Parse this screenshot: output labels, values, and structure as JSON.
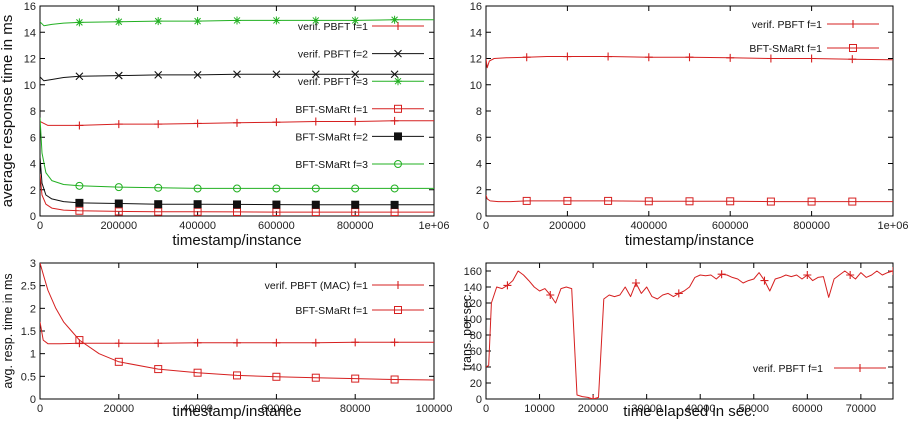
{
  "chart_data": [
    {
      "type": "line",
      "xlabel": "timestamp/instance",
      "ylabel": "average response time in ms",
      "xlim": [
        0,
        1000000
      ],
      "ylim": [
        0,
        16
      ],
      "xticks": [
        0,
        200000,
        400000,
        600000,
        800000,
        1000000
      ],
      "xtick_labels": [
        "0",
        "200000",
        "400000",
        "600000",
        "800000",
        "1e+06"
      ],
      "yticks": [
        0,
        2,
        4,
        6,
        8,
        10,
        12,
        14,
        16
      ],
      "ytick_labels": [
        "0",
        "2",
        "4",
        "6",
        "8",
        "10",
        "12",
        "14",
        "16"
      ],
      "grid": false,
      "legend": "right",
      "series": [
        {
          "name": "verif. PBFT f=1",
          "color": "#d62020",
          "marker": "plus",
          "x": [
            0,
            20000,
            60000,
            100000,
            200000,
            300000,
            400000,
            500000,
            600000,
            700000,
            800000,
            900000,
            1000000
          ],
          "y": [
            7.2,
            6.9,
            6.9,
            6.9,
            7.0,
            7.0,
            7.05,
            7.1,
            7.15,
            7.2,
            7.2,
            7.25,
            7.25
          ]
        },
        {
          "name": "verif. PBFT f=2",
          "color": "#111111",
          "marker": "x",
          "x": [
            0,
            10000,
            30000,
            60000,
            100000,
            200000,
            300000,
            400000,
            500000,
            600000,
            700000,
            800000,
            900000,
            1000000
          ],
          "y": [
            10.6,
            10.3,
            10.4,
            10.55,
            10.65,
            10.7,
            10.75,
            10.75,
            10.8,
            10.8,
            10.8,
            10.8,
            10.8,
            10.8
          ]
        },
        {
          "name": "verif. PBFT f=3",
          "color": "#22b022",
          "marker": "star",
          "x": [
            0,
            10000,
            30000,
            60000,
            100000,
            200000,
            300000,
            400000,
            500000,
            600000,
            700000,
            800000,
            900000,
            1000000
          ],
          "y": [
            14.8,
            14.5,
            14.6,
            14.7,
            14.75,
            14.8,
            14.85,
            14.85,
            14.9,
            14.9,
            14.9,
            14.9,
            14.95,
            14.95
          ]
        },
        {
          "name": "BFT-SMaRt f=1",
          "color": "#d62020",
          "marker": "square-open",
          "x": [
            0,
            5000,
            15000,
            30000,
            60000,
            100000,
            200000,
            300000,
            400000,
            500000,
            600000,
            700000,
            800000,
            900000,
            1000000
          ],
          "y": [
            3.2,
            1.6,
            0.9,
            0.6,
            0.45,
            0.4,
            0.35,
            0.33,
            0.32,
            0.31,
            0.3,
            0.3,
            0.3,
            0.3,
            0.3
          ]
        },
        {
          "name": "BFT-SMaRt f=2",
          "color": "#111111",
          "marker": "square-filled",
          "x": [
            0,
            5000,
            15000,
            30000,
            60000,
            100000,
            200000,
            300000,
            400000,
            500000,
            600000,
            700000,
            800000,
            900000,
            1000000
          ],
          "y": [
            4.5,
            2.5,
            1.6,
            1.3,
            1.1,
            1.0,
            0.95,
            0.9,
            0.9,
            0.88,
            0.87,
            0.86,
            0.86,
            0.85,
            0.85
          ]
        },
        {
          "name": "BFT-SMaRt f=3",
          "color": "#22b022",
          "marker": "circle-open",
          "x": [
            0,
            5000,
            15000,
            30000,
            60000,
            100000,
            200000,
            300000,
            400000,
            500000,
            600000,
            700000,
            800000,
            900000,
            1000000
          ],
          "y": [
            7.5,
            4.8,
            3.3,
            2.7,
            2.4,
            2.3,
            2.2,
            2.15,
            2.1,
            2.1,
            2.1,
            2.1,
            2.1,
            2.1,
            2.1
          ]
        }
      ]
    },
    {
      "type": "line",
      "xlabel": "timestamp/instance",
      "ylabel": "",
      "xlim": [
        0,
        1000000
      ],
      "ylim": [
        0,
        16
      ],
      "xticks": [
        0,
        200000,
        400000,
        600000,
        800000,
        1000000
      ],
      "xtick_labels": [
        "0",
        "200000",
        "400000",
        "600000",
        "800000",
        "1e+06"
      ],
      "yticks": [
        0,
        2,
        4,
        6,
        8,
        10,
        12,
        14,
        16
      ],
      "ytick_labels": [
        "0",
        "2",
        "4",
        "6",
        "8",
        "10",
        "12",
        "14",
        "16"
      ],
      "grid": false,
      "legend": "top-right",
      "series": [
        {
          "name": "verif. PBFT f=1",
          "color": "#d62020",
          "marker": "plus",
          "x": [
            0,
            3000,
            8000,
            20000,
            50000,
            100000,
            150000,
            200000,
            300000,
            400000,
            500000,
            600000,
            700000,
            800000,
            900000,
            1000000
          ],
          "y": [
            12.0,
            11.3,
            11.8,
            12.0,
            12.05,
            12.1,
            12.15,
            12.15,
            12.15,
            12.1,
            12.1,
            12.05,
            12.0,
            12.0,
            11.95,
            11.9
          ]
        },
        {
          "name": "BFT-SMaRt f=1",
          "color": "#d62020",
          "marker": "square-open",
          "x": [
            0,
            3000,
            10000,
            30000,
            60000,
            100000,
            200000,
            300000,
            400000,
            500000,
            600000,
            700000,
            800000,
            900000,
            1000000
          ],
          "y": [
            1.6,
            1.3,
            1.15,
            1.1,
            1.1,
            1.15,
            1.15,
            1.15,
            1.12,
            1.12,
            1.12,
            1.1,
            1.1,
            1.1,
            1.1
          ]
        }
      ]
    },
    {
      "type": "line",
      "xlabel": "timestamp/instance",
      "ylabel": "avg. resp. time in ms",
      "xlim": [
        0,
        100000
      ],
      "ylim": [
        0,
        3
      ],
      "xticks": [
        0,
        20000,
        40000,
        60000,
        80000,
        100000
      ],
      "xtick_labels": [
        "0",
        "20000",
        "40000",
        "60000",
        "80000",
        "100000"
      ],
      "yticks": [
        0,
        0.5,
        1,
        1.5,
        2,
        2.5,
        3
      ],
      "ytick_labels": [
        "0",
        "0.5",
        "1",
        "1.5",
        "2",
        "2.5",
        "3"
      ],
      "grid": false,
      "legend": "top-right",
      "series": [
        {
          "name": "verif. PBFT (MAC) f=1",
          "color": "#d62020",
          "marker": "plus",
          "x": [
            0,
            300,
            800,
            2000,
            5000,
            10000,
            20000,
            30000,
            40000,
            50000,
            60000,
            70000,
            80000,
            90000,
            100000
          ],
          "y": [
            1.7,
            1.55,
            1.3,
            1.22,
            1.22,
            1.23,
            1.23,
            1.23,
            1.24,
            1.24,
            1.24,
            1.24,
            1.25,
            1.25,
            1.25
          ]
        },
        {
          "name": "BFT-SMaRt f=1",
          "color": "#d62020",
          "marker": "square-open",
          "x": [
            0,
            1000,
            2000,
            4000,
            6000,
            8000,
            10000,
            15000,
            20000,
            30000,
            40000,
            50000,
            60000,
            70000,
            80000,
            90000,
            100000
          ],
          "y": [
            3.0,
            2.7,
            2.4,
            2.0,
            1.7,
            1.5,
            1.3,
            1.0,
            0.82,
            0.66,
            0.58,
            0.52,
            0.49,
            0.47,
            0.45,
            0.43,
            0.42
          ]
        }
      ]
    },
    {
      "type": "line",
      "xlabel": "time elapsed in sec.",
      "ylabel": "trans. per sec.",
      "xlim": [
        0,
        76000
      ],
      "ylim": [
        0,
        170
      ],
      "xticks": [
        0,
        10000,
        20000,
        30000,
        40000,
        50000,
        60000,
        70000
      ],
      "xtick_labels": [
        "0",
        "10000",
        "20000",
        "30000",
        "40000",
        "50000",
        "60000",
        "70000"
      ],
      "yticks": [
        0,
        20,
        40,
        60,
        80,
        100,
        120,
        140,
        160
      ],
      "ytick_labels": [
        "0",
        "20",
        "40",
        "60",
        "80",
        "100",
        "120",
        "140",
        "160"
      ],
      "grid": false,
      "legend": "bottom-right",
      "series": [
        {
          "name": "verif. PBFT f=1",
          "color": "#d62020",
          "marker": "plus",
          "x": [
            0,
            500,
            1000,
            2000,
            3000,
            4000,
            5000,
            6000,
            7000,
            8000,
            9000,
            10000,
            11000,
            12000,
            13000,
            14000,
            15000,
            16000,
            17000,
            18000,
            19000,
            20000,
            21000,
            22000,
            23000,
            24000,
            25000,
            26000,
            27000,
            28000,
            29000,
            30000,
            31000,
            32000,
            33000,
            34000,
            35000,
            36000,
            37000,
            38000,
            39000,
            40000,
            41000,
            42000,
            43000,
            44000,
            45000,
            46000,
            47000,
            48000,
            49000,
            50000,
            51000,
            52000,
            53000,
            54000,
            55000,
            56000,
            57000,
            58000,
            59000,
            60000,
            61000,
            62000,
            63000,
            64000,
            65000,
            66000,
            67000,
            68000,
            69000,
            70000,
            71000,
            72000,
            73000,
            74000,
            75000,
            76000
          ],
          "y": [
            40,
            42,
            120,
            140,
            138,
            142,
            148,
            160,
            155,
            148,
            140,
            135,
            138,
            130,
            120,
            138,
            140,
            138,
            5,
            3,
            2,
            0,
            2,
            125,
            130,
            128,
            130,
            140,
            128,
            145,
            132,
            140,
            128,
            125,
            130,
            132,
            128,
            132,
            135,
            140,
            152,
            155,
            154,
            155,
            150,
            156,
            155,
            152,
            150,
            145,
            148,
            150,
            158,
            148,
            135,
            150,
            152,
            155,
            153,
            155,
            150,
            155,
            148,
            152,
            153,
            127,
            150,
            155,
            160,
            155,
            150,
            158,
            152,
            155,
            160,
            155,
            158,
            160
          ]
        }
      ]
    }
  ]
}
